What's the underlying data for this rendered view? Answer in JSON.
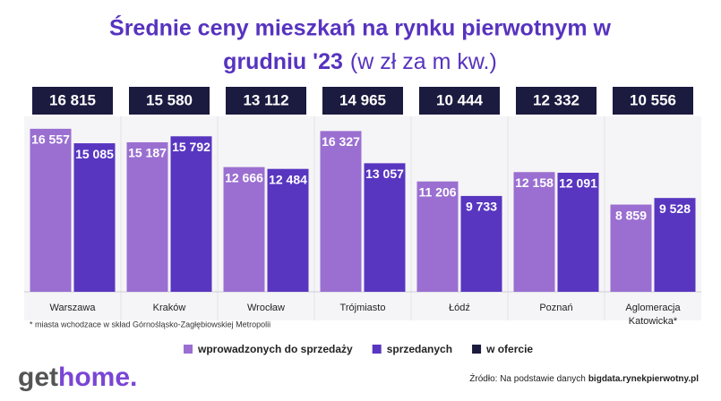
{
  "chart_data": {
    "type": "bar",
    "title": [
      "Średnie ceny mieszkań na rynku pierwotnym w",
      "grudniu '23"
    ],
    "subtitle": "(w zł za m kw.)",
    "categories": [
      "Warszawa",
      "Kraków",
      "Wrocław",
      "Trójmiasto",
      "Łódź",
      "Poznań",
      "Aglomeracja Katowicka*"
    ],
    "series": [
      {
        "name": "wprowadzonych do sprzedaży",
        "color": "#9a6fd1",
        "values": [
          16557,
          15187,
          12666,
          16327,
          11206,
          12158,
          8859
        ],
        "value_labels": [
          "16 557",
          "15 187",
          "12 666",
          "16 327",
          "11 206",
          "12 158",
          "8 859"
        ]
      },
      {
        "name": "sprzedanych",
        "color": "#5836c0",
        "values": [
          15085,
          15792,
          12484,
          13057,
          9733,
          12091,
          9528
        ],
        "value_labels": [
          "15 085",
          "15 792",
          "12 484",
          "13 057",
          "9 733",
          "12 091",
          "9 528"
        ]
      },
      {
        "name": "w ofercie",
        "color": "#1b1a3f",
        "values": [
          16815,
          15580,
          13112,
          14965,
          10444,
          12332,
          10556
        ],
        "value_labels": [
          "16 815",
          "15 580",
          "13 112",
          "14 965",
          "10 444",
          "12 332",
          "10 556"
        ]
      }
    ],
    "ylim": [
      0,
      17000
    ],
    "footnote": "* miasta wchodzace w skład Górnośląsko-Zagłębiowskiej Metropolii",
    "logo": {
      "prefix": "get",
      "suffix": "home."
    },
    "source": {
      "prefix": "Źródło: Na podstawie danych",
      "link": "bigdata.rynekpierwotny.pl"
    }
  }
}
